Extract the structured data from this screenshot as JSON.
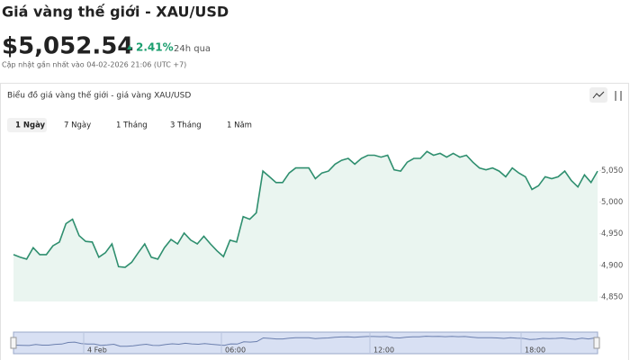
{
  "header": {
    "title": "Giá vàng thế giới - XAU/USD",
    "price": "$5,052.54",
    "change": "2.41%",
    "period": "24h qua",
    "updated": "Cập nhật gần nhất vào 04-02-2026 21:06 (UTC +7)"
  },
  "card": {
    "title": "Biểu đồ giá vàng thế giới - giá vàng XAU/USD",
    "tabs": [
      "1 Ngày",
      "7 Ngày",
      "1 Tháng",
      "3 Tháng",
      "1 Năm"
    ]
  },
  "chart_data": {
    "type": "line",
    "color": "#2f8f6f",
    "values": [
      4917,
      4913,
      4910,
      4928,
      4917,
      4917,
      4931,
      4937,
      4966,
      4973,
      4947,
      4938,
      4937,
      4913,
      4920,
      4934,
      4898,
      4897,
      4905,
      4920,
      4934,
      4913,
      4910,
      4928,
      4941,
      4934,
      4951,
      4940,
      4934,
      4946,
      4934,
      4923,
      4914,
      4940,
      4937,
      4977,
      4973,
      4983,
      5049,
      5040,
      5031,
      5031,
      5046,
      5054,
      5054,
      5054,
      5037,
      5046,
      5049,
      5060,
      5066,
      5069,
      5060,
      5069,
      5074,
      5074,
      5071,
      5074,
      5051,
      5049,
      5063,
      5069,
      5069,
      5080,
      5074,
      5077,
      5071,
      5077,
      5071,
      5074,
      5063,
      5054,
      5051,
      5054,
      5049,
      5040,
      5054,
      5046,
      5040,
      5020,
      5026,
      5040,
      5037,
      5040,
      5049,
      5034,
      5024,
      5043,
      5031,
      5049
    ],
    "ylim": [
      4843,
      5106
    ],
    "yticks": [
      {
        "value": 4850,
        "label": "4,850"
      },
      {
        "value": 4900,
        "label": "4,900"
      },
      {
        "value": 4950,
        "label": "4,950"
      },
      {
        "value": 5000,
        "label": "5,000"
      },
      {
        "value": 5050,
        "label": "5,050"
      }
    ],
    "navigator_labels": [
      "4 Feb",
      "06:00",
      "12:00",
      "18:00"
    ]
  }
}
